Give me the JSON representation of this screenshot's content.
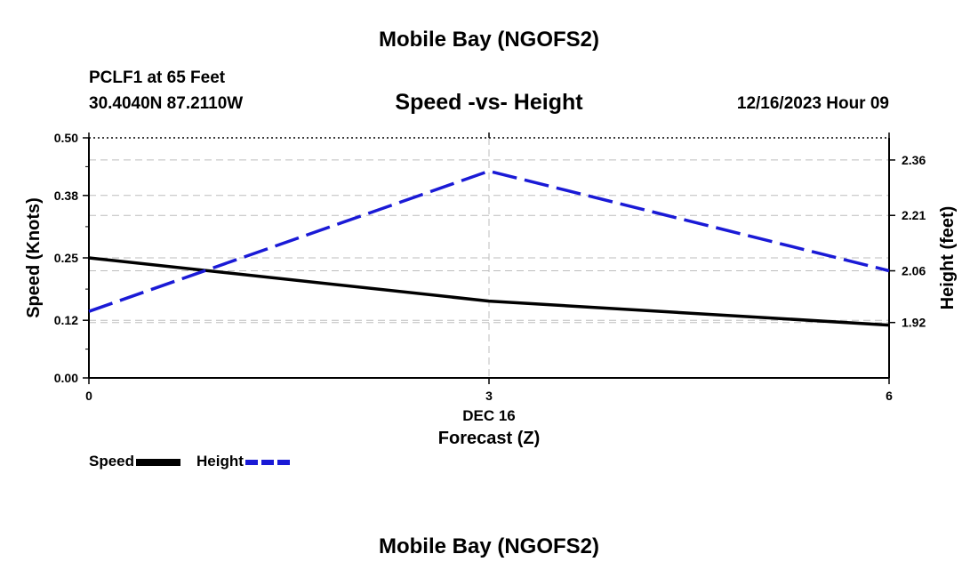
{
  "page": {
    "top_title": "Mobile Bay (NGOFS2)",
    "bottom_title": "Mobile Bay (NGOFS2)",
    "station": "PCLF1 at 65 Feet",
    "coords": "30.4040N  87.2110W",
    "datetime": "12/16/2023 Hour 09"
  },
  "chart_data": {
    "type": "line",
    "title": "Speed -vs- Height",
    "xlabel": "Forecast (Z)",
    "xlabel_date": "DEC 16",
    "ylabel": "Speed (Knots)",
    "y2label": "Height (feet)",
    "x": [
      0,
      3,
      6
    ],
    "xlim": [
      0,
      6
    ],
    "x_ticks": [
      "0",
      "3",
      "6"
    ],
    "ylim": [
      0,
      0.5
    ],
    "y_ticks": [
      "0.00",
      "0.12",
      "0.25",
      "0.38",
      "0.50"
    ],
    "y2lim": [
      1.77,
      2.42
    ],
    "y2_ticks": [
      "1.92",
      "2.06",
      "2.21",
      "2.36"
    ],
    "y2_tick_values": [
      1.92,
      2.06,
      2.21,
      2.36
    ],
    "grid": true,
    "series": [
      {
        "name": "Speed",
        "axis": "left",
        "values": [
          0.25,
          0.16,
          0.11
        ],
        "color": "#000000",
        "style": "solid"
      },
      {
        "name": "Height",
        "axis": "right",
        "values": [
          1.95,
          2.33,
          2.06
        ],
        "color": "#1a1ad6",
        "style": "dashed"
      }
    ],
    "legend": {
      "placement": "bottom-left",
      "speed_label": "Speed",
      "height_label": "Height"
    }
  }
}
